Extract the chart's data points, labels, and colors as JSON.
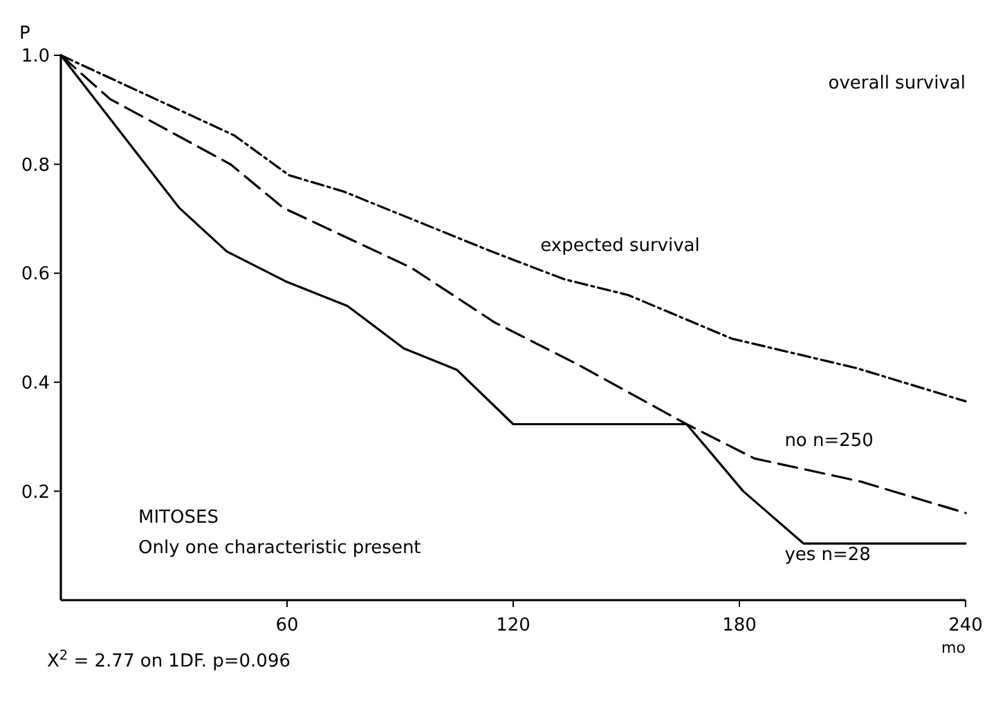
{
  "chart_data": {
    "type": "line",
    "xlabel": "mo",
    "ylabel": "P",
    "xlim": [
      0,
      240
    ],
    "xticks": [
      60,
      120,
      180,
      240
    ],
    "ylim": [
      0,
      1
    ],
    "yticks": [
      0.2,
      0.4,
      0.6,
      0.8,
      {
        "value": 1,
        "label": "1.0"
      }
    ],
    "grid": false,
    "marker": "none",
    "series": [
      {
        "name": "expected survival",
        "color": "#000000",
        "line_style": "dotted",
        "x": [
          0,
          46,
          60.5,
          75,
          115,
          133.5,
          150.5,
          178,
          211,
          240
        ],
        "values": [
          1,
          0.853,
          0.78,
          0.75,
          0.638,
          0.589,
          0.56,
          0.48,
          0.426,
          0.365
        ]
      },
      {
        "name": "no n=250",
        "color": "#000000",
        "line_style": "dashed",
        "x": [
          0,
          13,
          45,
          59,
          93,
          115,
          137,
          166,
          184,
          212,
          240
        ],
        "values": [
          1,
          0.92,
          0.8,
          0.72,
          0.61,
          0.51,
          0.433,
          0.323,
          0.26,
          0.218,
          0.16
        ]
      },
      {
        "name": "yes n=28",
        "color": "#000000",
        "line_style": "solid",
        "x": [
          0,
          31.4,
          44,
          60,
          76,
          91,
          105,
          120,
          166,
          181,
          197,
          240
        ],
        "values": [
          1,
          0.72,
          0.64,
          0.584,
          0.54,
          0.462,
          0.423,
          0.323,
          0.323,
          0.2,
          0.104,
          0.104
        ]
      }
    ],
    "annotations": [
      "overall survival",
      "MITOSES",
      "Only one characteristic present",
      "X$^{2}$ = 2.77 on 1DF.  p=0.096"
    ]
  }
}
